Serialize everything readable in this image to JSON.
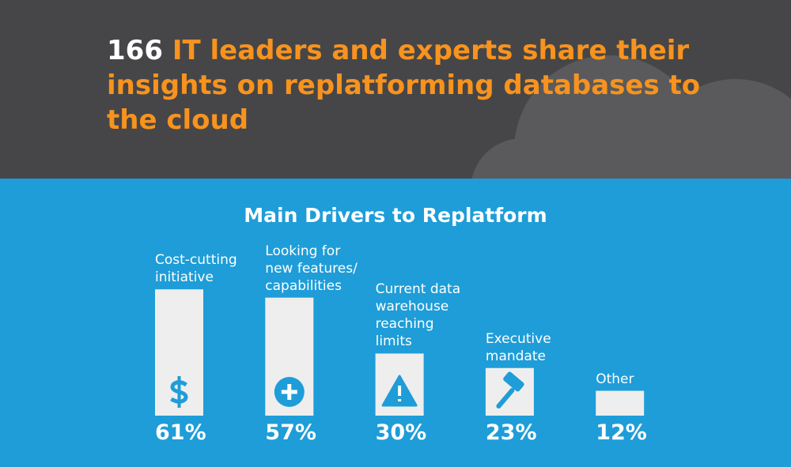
{
  "chart_data": {
    "type": "bar",
    "highlight": "166",
    "headline": "IT leaders and experts share their insights on replatforming databases to the cloud",
    "title": "Main Drivers to Replatform",
    "categories": [
      "Cost-cutting\ninitiative",
      "Looking for\nnew features/\ncapabilities",
      "Current data\nwarehouse\nreaching\nlimits",
      "Executive\nmandate",
      "Other"
    ],
    "values": [
      61,
      57,
      30,
      23,
      12
    ],
    "value_labels": [
      "61%",
      "57%",
      "30%",
      "23%",
      "12%"
    ],
    "color": "#eeeeee",
    "ylim": [
      0,
      100
    ]
  }
}
